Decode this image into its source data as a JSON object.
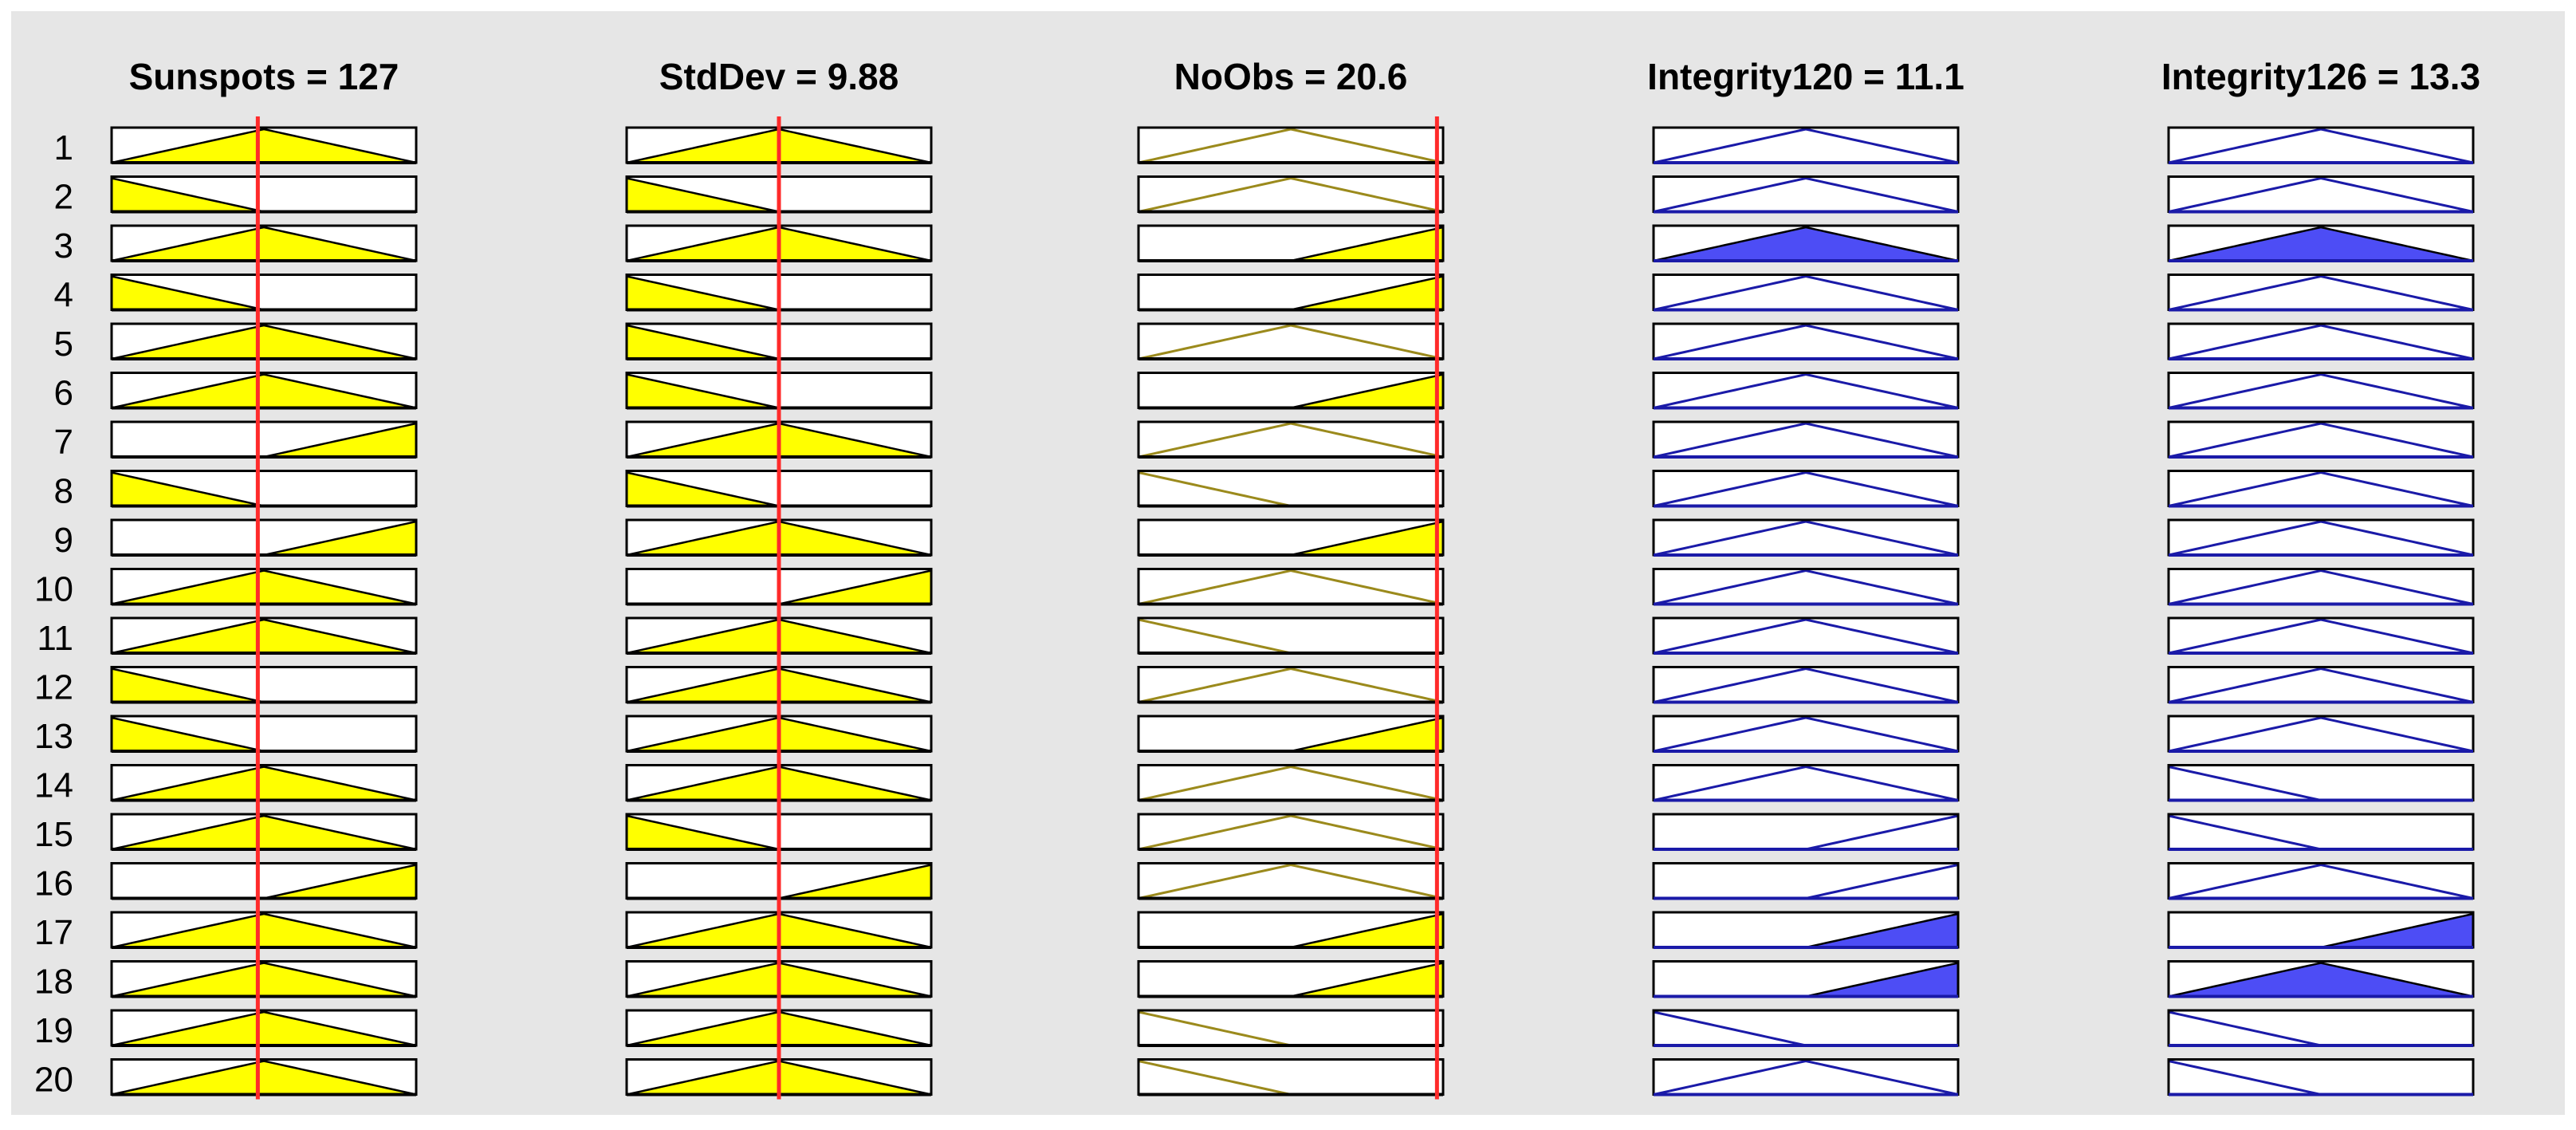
{
  "chart_data": {
    "type": "fuzzy-rule-viewer",
    "rule_numbers": [
      "1",
      "2",
      "3",
      "4",
      "5",
      "6",
      "7",
      "8",
      "9",
      "10",
      "11",
      "12",
      "13",
      "14",
      "15",
      "16",
      "17",
      "18",
      "19",
      "20"
    ],
    "domain": [
      0,
      1
    ],
    "colors": {
      "figure_bg": "#e6e6e6",
      "box_bg": "#ffffff",
      "input_fill": "#ffff00",
      "input_curve": "#9b8a1c",
      "output_fill": "#4d4df5",
      "output_curve": "#1a1aa8",
      "indicator": "#ff2a2a",
      "border": "#000000"
    },
    "columns": [
      {
        "title": "Sunspots = 127",
        "variable": "Sunspots",
        "value": 127,
        "role": "input",
        "indicator": 0.48,
        "rules": [
          "mid",
          "low",
          "mid",
          "low",
          "mid",
          "mid",
          "high",
          "low",
          "high",
          "mid",
          "mid",
          "low",
          "low",
          "mid",
          "mid",
          "high",
          "mid",
          "mid",
          "mid",
          "mid"
        ],
        "filled": [
          true,
          true,
          true,
          true,
          true,
          true,
          true,
          true,
          true,
          true,
          true,
          true,
          true,
          true,
          true,
          true,
          true,
          true,
          true,
          true
        ]
      },
      {
        "title": "StdDev = 9.88",
        "variable": "StdDev",
        "value": 9.88,
        "role": "input",
        "indicator": 0.5,
        "rules": [
          "mid",
          "low",
          "mid",
          "low",
          "low",
          "low",
          "mid",
          "low",
          "mid",
          "high",
          "mid",
          "mid",
          "mid",
          "mid",
          "low",
          "high",
          "mid",
          "mid",
          "mid",
          "mid"
        ],
        "filled": [
          true,
          true,
          true,
          true,
          true,
          true,
          true,
          true,
          true,
          true,
          true,
          true,
          true,
          true,
          true,
          true,
          true,
          true,
          true,
          true
        ]
      },
      {
        "title": "NoObs = 20.6",
        "variable": "NoObs",
        "value": 20.6,
        "role": "input",
        "indicator": 0.98,
        "rules": [
          "mid",
          "mid",
          "high",
          "high",
          "mid",
          "high",
          "mid",
          "low",
          "high",
          "mid",
          "low",
          "mid",
          "high",
          "mid",
          "mid",
          "mid",
          "high",
          "high",
          "low",
          "low"
        ],
        "filled": [
          false,
          false,
          true,
          true,
          false,
          true,
          false,
          false,
          true,
          false,
          false,
          false,
          true,
          false,
          false,
          false,
          true,
          true,
          false,
          false
        ]
      },
      {
        "title": "Integrity120 = 11.1",
        "variable": "Integrity120",
        "value": 11.1,
        "role": "output",
        "rules": [
          "mid",
          "mid",
          "mid",
          "mid",
          "mid",
          "mid",
          "mid",
          "mid",
          "mid",
          "mid",
          "mid",
          "mid",
          "mid",
          "mid",
          "high",
          "high",
          "high",
          "high",
          "low",
          "mid"
        ],
        "filled": [
          false,
          false,
          true,
          false,
          false,
          false,
          false,
          false,
          false,
          false,
          false,
          false,
          false,
          false,
          false,
          false,
          true,
          true,
          false,
          false
        ]
      },
      {
        "title": "Integrity126 = 13.3",
        "variable": "Integrity126",
        "value": 13.3,
        "role": "output",
        "rules": [
          "mid",
          "mid",
          "mid",
          "mid",
          "mid",
          "mid",
          "mid",
          "mid",
          "mid",
          "mid",
          "mid",
          "mid",
          "mid",
          "low",
          "low",
          "mid",
          "high",
          "mid",
          "low",
          "low"
        ],
        "filled": [
          false,
          false,
          true,
          false,
          false,
          false,
          false,
          false,
          false,
          false,
          false,
          false,
          false,
          false,
          false,
          false,
          true,
          true,
          false,
          false
        ]
      }
    ]
  }
}
